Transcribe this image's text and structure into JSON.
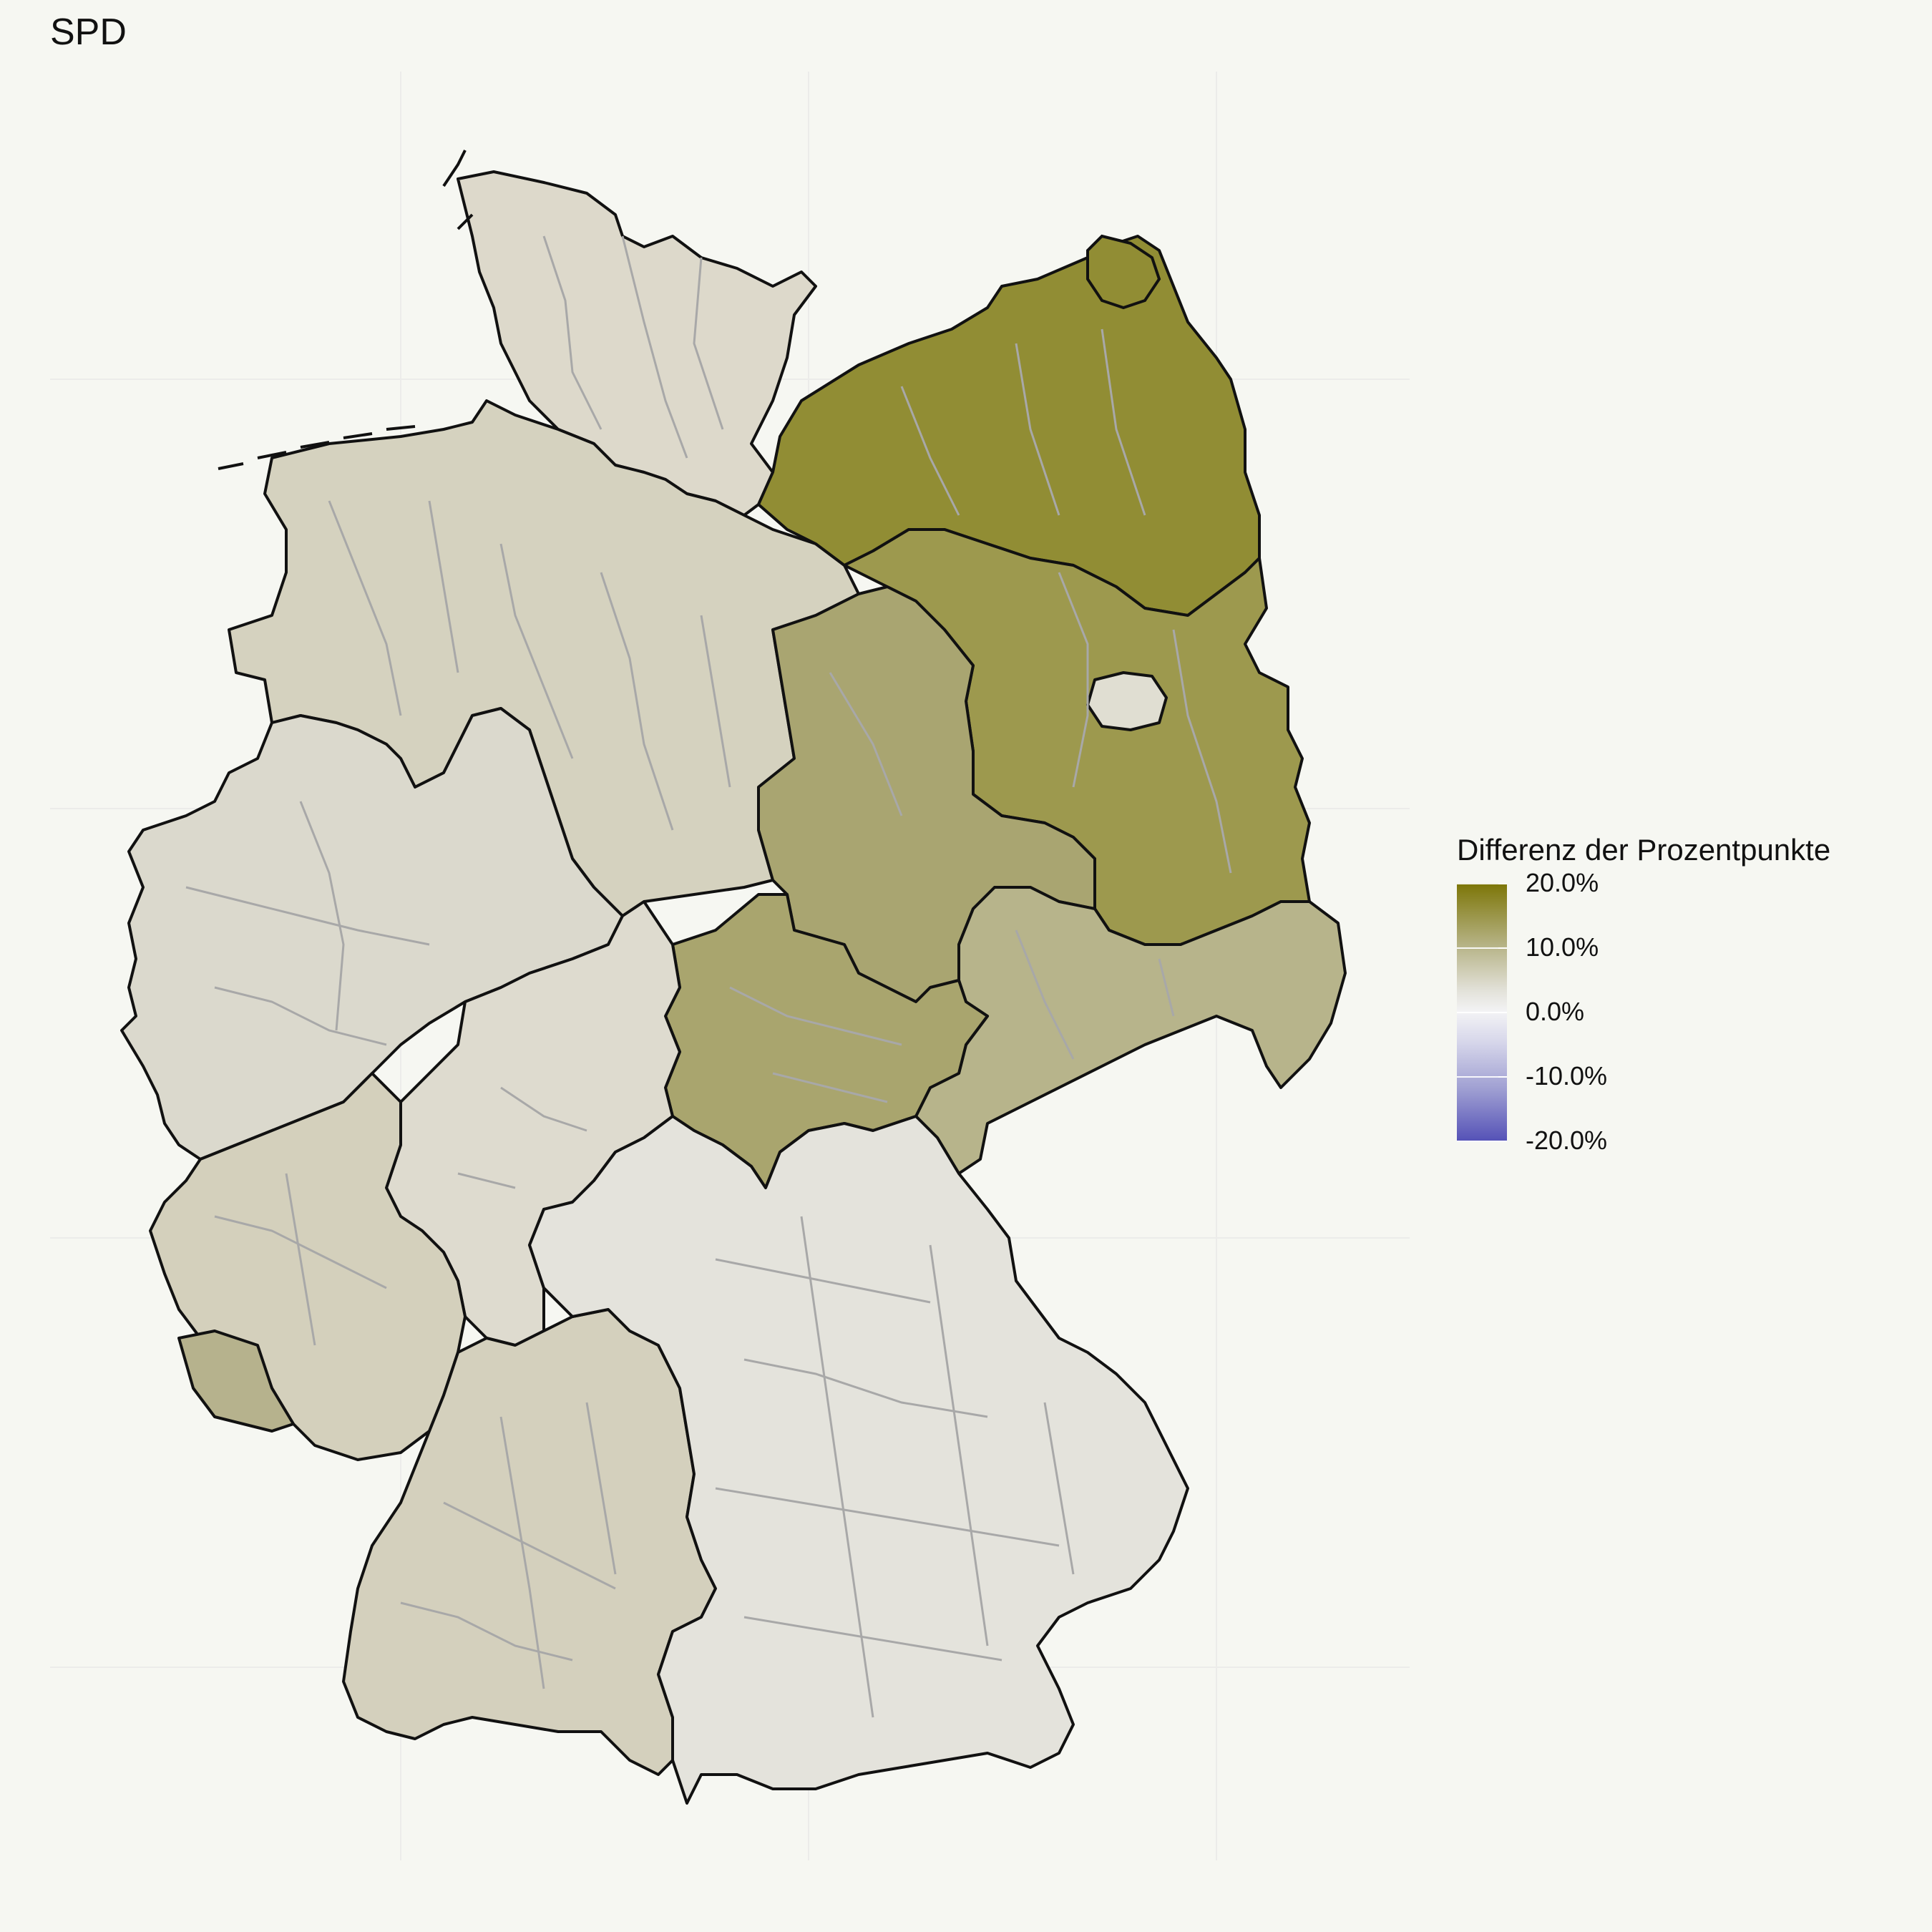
{
  "title": "SPD",
  "legend": {
    "title": "Differenz der Prozentpunkte",
    "ticks": [
      {
        "label": "20.0%",
        "value": 20
      },
      {
        "label": "10.0%",
        "value": 10
      },
      {
        "label": "0.0%",
        "value": 0
      },
      {
        "label": "-10.0%",
        "value": -10
      },
      {
        "label": "-20.0%",
        "value": -20
      }
    ],
    "scale": {
      "min": -20,
      "max": 20,
      "low_color": "#5552b7",
      "mid_color": "#f3f3f5",
      "high_color": "#7c7506"
    }
  },
  "colors": {
    "background": "#f6f7f2",
    "state_border": "#111111",
    "district_border": "#a8a8a8"
  }
}
